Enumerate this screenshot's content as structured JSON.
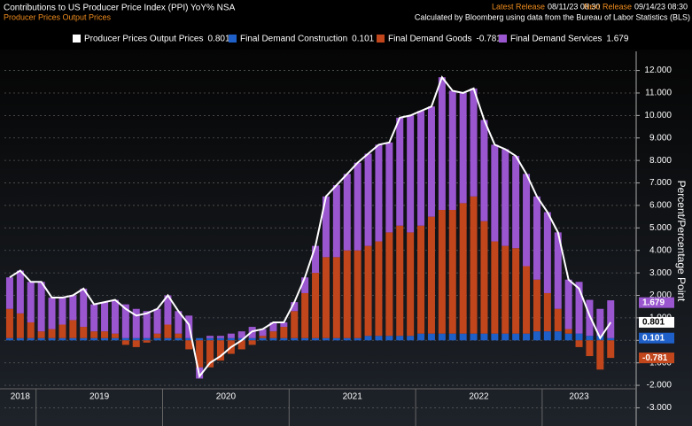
{
  "header": {
    "title": "Contributions to US Producer Price Index (PPI) YoY% NSA",
    "subtitle": "Producer Prices Output Prices",
    "latest_label": "Latest Release",
    "latest_value": "08/11/23 08:30",
    "next_label": "Next Release",
    "next_value": "09/14/23 08:30",
    "source": "Calculated by Bloomberg using data from the Bureau of Labor Statistics (BLS)"
  },
  "chart_data": {
    "type": "bar",
    "stacked": true,
    "y_axis_label": "Percent/Percentage Point",
    "categories": [
      "2018",
      null,
      null,
      "2019",
      null,
      null,
      null,
      null,
      null,
      null,
      null,
      null,
      null,
      null,
      null,
      "2020",
      null,
      null,
      null,
      null,
      null,
      null,
      null,
      null,
      null,
      null,
      null,
      "2021",
      null,
      null,
      null,
      null,
      null,
      null,
      null,
      null,
      null,
      null,
      null,
      "2022",
      null,
      null,
      null,
      null,
      null,
      null,
      null,
      null,
      null,
      null,
      null,
      "2023",
      null,
      null,
      null,
      null,
      null,
      null
    ],
    "series": [
      {
        "name": "Producer Prices Output Prices",
        "type": "line",
        "color": "#ffffff",
        "values": [
          2.8,
          3.1,
          2.6,
          2.6,
          1.9,
          1.9,
          2.0,
          2.3,
          1.6,
          1.7,
          1.8,
          1.4,
          1.1,
          1.2,
          1.4,
          2.0,
          1.3,
          0.7,
          -1.6,
          -1.0,
          -0.7,
          -0.3,
          0.0,
          0.4,
          0.5,
          0.8,
          0.8,
          1.7,
          2.8,
          4.2,
          6.4,
          6.9,
          7.4,
          7.9,
          8.3,
          8.7,
          8.8,
          9.9,
          10.0,
          10.2,
          10.4,
          11.7,
          11.1,
          11.0,
          11.2,
          9.8,
          8.7,
          8.5,
          8.2,
          7.4,
          6.4,
          5.7,
          4.8,
          2.7,
          2.3,
          1.1,
          0.1,
          0.801
        ]
      },
      {
        "name": "Final Demand Construction",
        "type": "bar",
        "color": "#1f5fc8",
        "values": [
          0.1,
          0.1,
          0.1,
          0.1,
          0.1,
          0.1,
          0.1,
          0.1,
          0.1,
          0.1,
          0.1,
          0.1,
          0.1,
          0.1,
          0.1,
          0.1,
          0.1,
          0.1,
          0.1,
          0.1,
          0.1,
          0.1,
          0.1,
          0.1,
          0.1,
          0.1,
          0.1,
          0.1,
          0.1,
          0.1,
          0.1,
          0.1,
          0.1,
          0.1,
          0.2,
          0.2,
          0.2,
          0.2,
          0.2,
          0.3,
          0.3,
          0.3,
          0.3,
          0.3,
          0.3,
          0.3,
          0.3,
          0.3,
          0.3,
          0.3,
          0.4,
          0.4,
          0.4,
          0.3,
          0.3,
          0.2,
          0.2,
          0.101
        ]
      },
      {
        "name": "Final Demand Goods",
        "type": "bar",
        "color": "#c2461c",
        "values": [
          1.3,
          1.1,
          0.7,
          0.3,
          0.4,
          0.6,
          0.8,
          0.5,
          0.3,
          0.3,
          0.2,
          -0.2,
          -0.3,
          -0.1,
          0.2,
          0.6,
          0.2,
          -0.4,
          -1.2,
          -1.2,
          -0.9,
          -0.6,
          -0.4,
          -0.2,
          0.1,
          0.3,
          0.5,
          1.2,
          2.0,
          2.9,
          3.6,
          3.6,
          3.9,
          3.9,
          4.0,
          4.2,
          4.6,
          4.9,
          4.6,
          4.8,
          5.2,
          5.5,
          5.5,
          5.8,
          6.1,
          5.0,
          4.1,
          3.9,
          3.8,
          3.0,
          2.3,
          1.7,
          1.0,
          0.2,
          -0.3,
          -0.7,
          -1.3,
          -0.781
        ]
      },
      {
        "name": "Final Demand Services",
        "type": "bar",
        "color": "#9a56cf",
        "values": [
          1.4,
          1.9,
          1.8,
          2.2,
          1.4,
          1.2,
          1.1,
          1.7,
          1.2,
          1.3,
          1.5,
          1.5,
          1.3,
          1.2,
          1.1,
          1.3,
          1.0,
          1.0,
          -0.5,
          0.1,
          0.1,
          0.2,
          0.3,
          0.5,
          0.3,
          0.4,
          0.2,
          0.4,
          0.7,
          1.2,
          2.7,
          3.2,
          3.4,
          3.9,
          4.1,
          4.3,
          4.0,
          4.8,
          5.2,
          5.1,
          4.9,
          5.9,
          5.3,
          4.9,
          4.8,
          4.5,
          4.3,
          4.3,
          4.1,
          4.1,
          3.7,
          3.6,
          3.4,
          2.2,
          2.3,
          1.6,
          1.2,
          1.679
        ]
      }
    ],
    "ylim": [
      -3.1,
      12.85
    ],
    "yticks": [
      {
        "value": -3,
        "label": "-3.000"
      },
      {
        "value": -2,
        "label": "-2.000"
      },
      {
        "value": -1,
        "label": "-1.000"
      },
      {
        "value": 0,
        "label": "0.000"
      },
      {
        "value": 1,
        "label": "1.000"
      },
      {
        "value": 2,
        "label": "2.000"
      },
      {
        "value": 3,
        "label": "3.000"
      },
      {
        "value": 4,
        "label": "4.000"
      },
      {
        "value": 5,
        "label": "5.000"
      },
      {
        "value": 6,
        "label": "6.000"
      },
      {
        "value": 7,
        "label": "7.000"
      },
      {
        "value": 8,
        "label": "8.000"
      },
      {
        "value": 9,
        "label": "9.000"
      },
      {
        "value": 10,
        "label": "10.000"
      },
      {
        "value": 11,
        "label": "11.000"
      },
      {
        "value": 12,
        "label": "12.000"
      }
    ],
    "grid": true,
    "legend": "top"
  }
}
